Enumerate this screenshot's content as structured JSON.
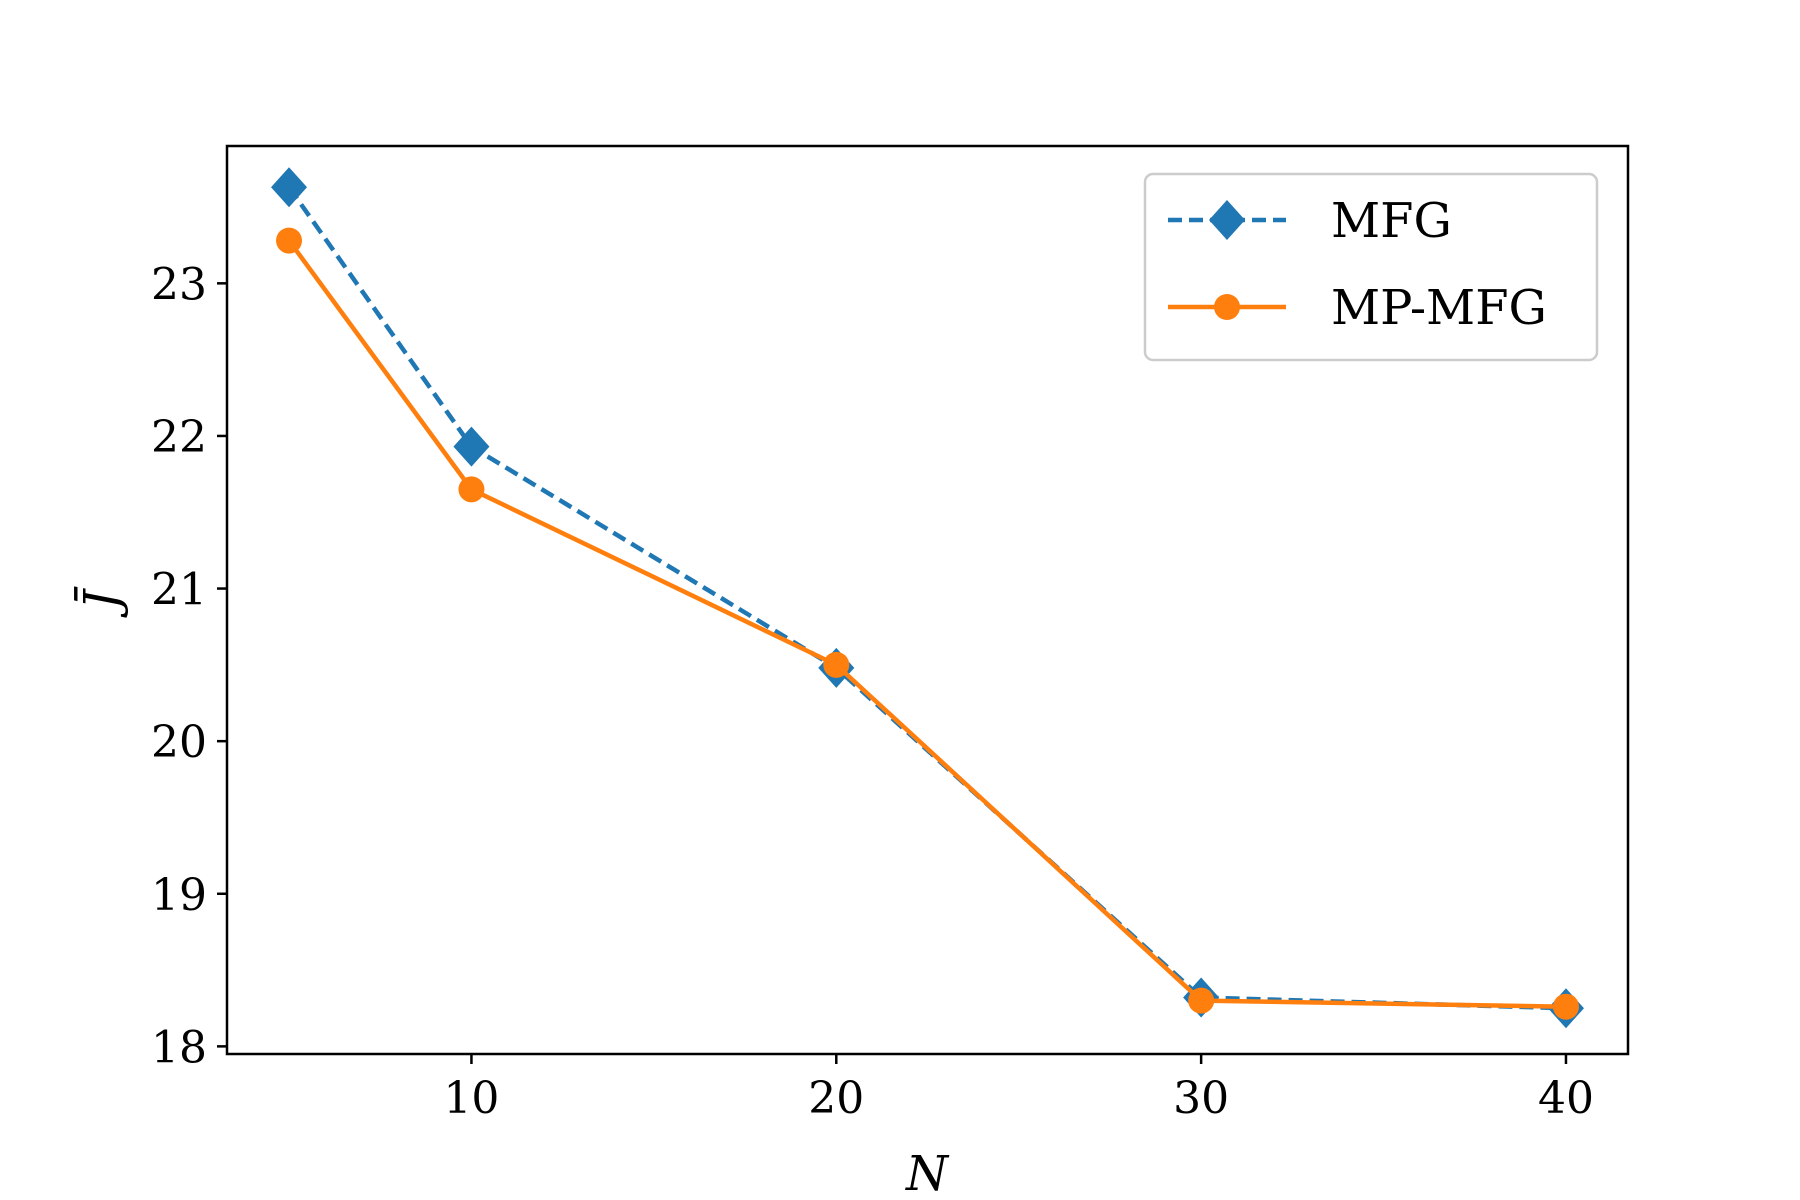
{
  "chart_data": {
    "type": "line",
    "xlabel": "N",
    "ylabel": "J̄",
    "xlim": [
      3.3,
      41.7
    ],
    "ylim": [
      17.95,
      23.9
    ],
    "xticks": [
      10,
      20,
      30,
      40
    ],
    "yticks": [
      18,
      19,
      20,
      21,
      22,
      23
    ],
    "grid": false,
    "legend_position": "top-right",
    "series": [
      {
        "name": "MFG",
        "color": "#1f77b4",
        "line_style": "dashed",
        "marker": "diamond",
        "x": [
          5,
          10,
          20,
          30,
          40
        ],
        "y": [
          23.63,
          21.93,
          20.48,
          18.32,
          18.25
        ]
      },
      {
        "name": "MP-MFG",
        "color": "#ff7f0e",
        "line_style": "solid",
        "marker": "circle",
        "x": [
          5,
          10,
          20,
          30,
          40
        ],
        "y": [
          23.28,
          21.65,
          20.5,
          18.3,
          18.26
        ]
      }
    ]
  }
}
